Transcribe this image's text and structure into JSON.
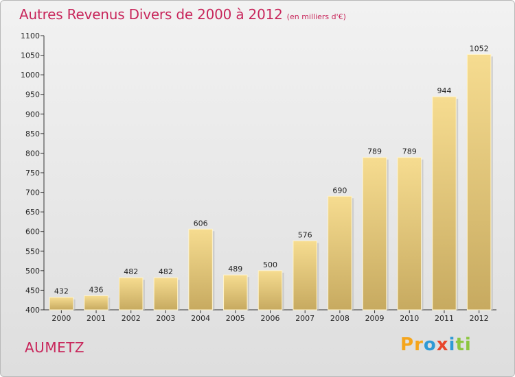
{
  "header": {
    "title": "Autres Revenus Divers de 2000 à 2012",
    "unit": "(en milliers d'€)"
  },
  "commune": "AUMETZ",
  "logo": {
    "letters": [
      "P",
      "r",
      "o",
      "x",
      "i",
      "t",
      "i"
    ],
    "colors": [
      "#f5a51b",
      "#f5a51b",
      "#2f9ad5",
      "#e8452c",
      "#2f9ad5",
      "#8cc63f",
      "#8cc63f"
    ]
  },
  "colors": {
    "title": "#c8265b",
    "bar_light": "#f6dc90",
    "bar_dark": "#c7aa60"
  },
  "chart_data": {
    "type": "bar",
    "title": "Autres Revenus Divers de 2000 à 2012",
    "subtitle": "(en milliers d'€)",
    "categories": [
      "2000",
      "2001",
      "2002",
      "2003",
      "2004",
      "2005",
      "2006",
      "2007",
      "2008",
      "2009",
      "2010",
      "2011",
      "2012"
    ],
    "values": [
      432,
      436,
      482,
      482,
      606,
      489,
      500,
      576,
      690,
      789,
      789,
      944,
      1052
    ],
    "ylim": [
      400,
      1100
    ],
    "yticks": [
      400,
      450,
      500,
      550,
      600,
      650,
      700,
      750,
      800,
      850,
      900,
      950,
      1000,
      1050,
      1100
    ],
    "grid": false,
    "xlabel": "",
    "ylabel": ""
  }
}
